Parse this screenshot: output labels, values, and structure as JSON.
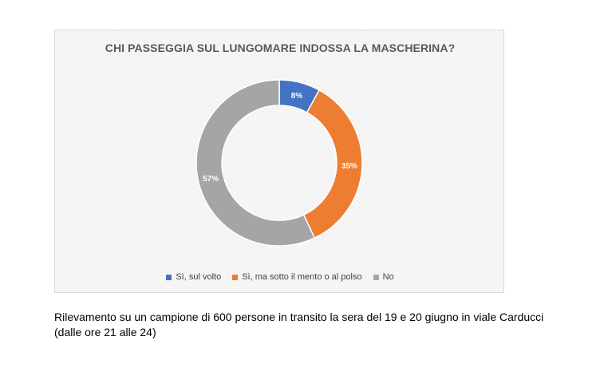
{
  "chart_data": {
    "type": "pie",
    "subtype": "donut",
    "title": "CHI PASSEGGIA SUL LUNGOMARE INDOSSA LA MASCHERINA?",
    "categories": [
      "Sì, sul volto",
      "Sì, ma sotto il mento o al polso",
      "No"
    ],
    "values": [
      8,
      35,
      57
    ],
    "value_labels": [
      "8%",
      "35%",
      "57%"
    ],
    "colors": [
      "#4472C4",
      "#ED7D31",
      "#A5A5A5"
    ],
    "legend_position": "bottom"
  },
  "caption": {
    "line1": "Rilevamento su un campione di 600 persone in transito la sera del 19 e 20 giugno in viale Carducci",
    "line2": "(dalle ore 21 alle 24)"
  }
}
